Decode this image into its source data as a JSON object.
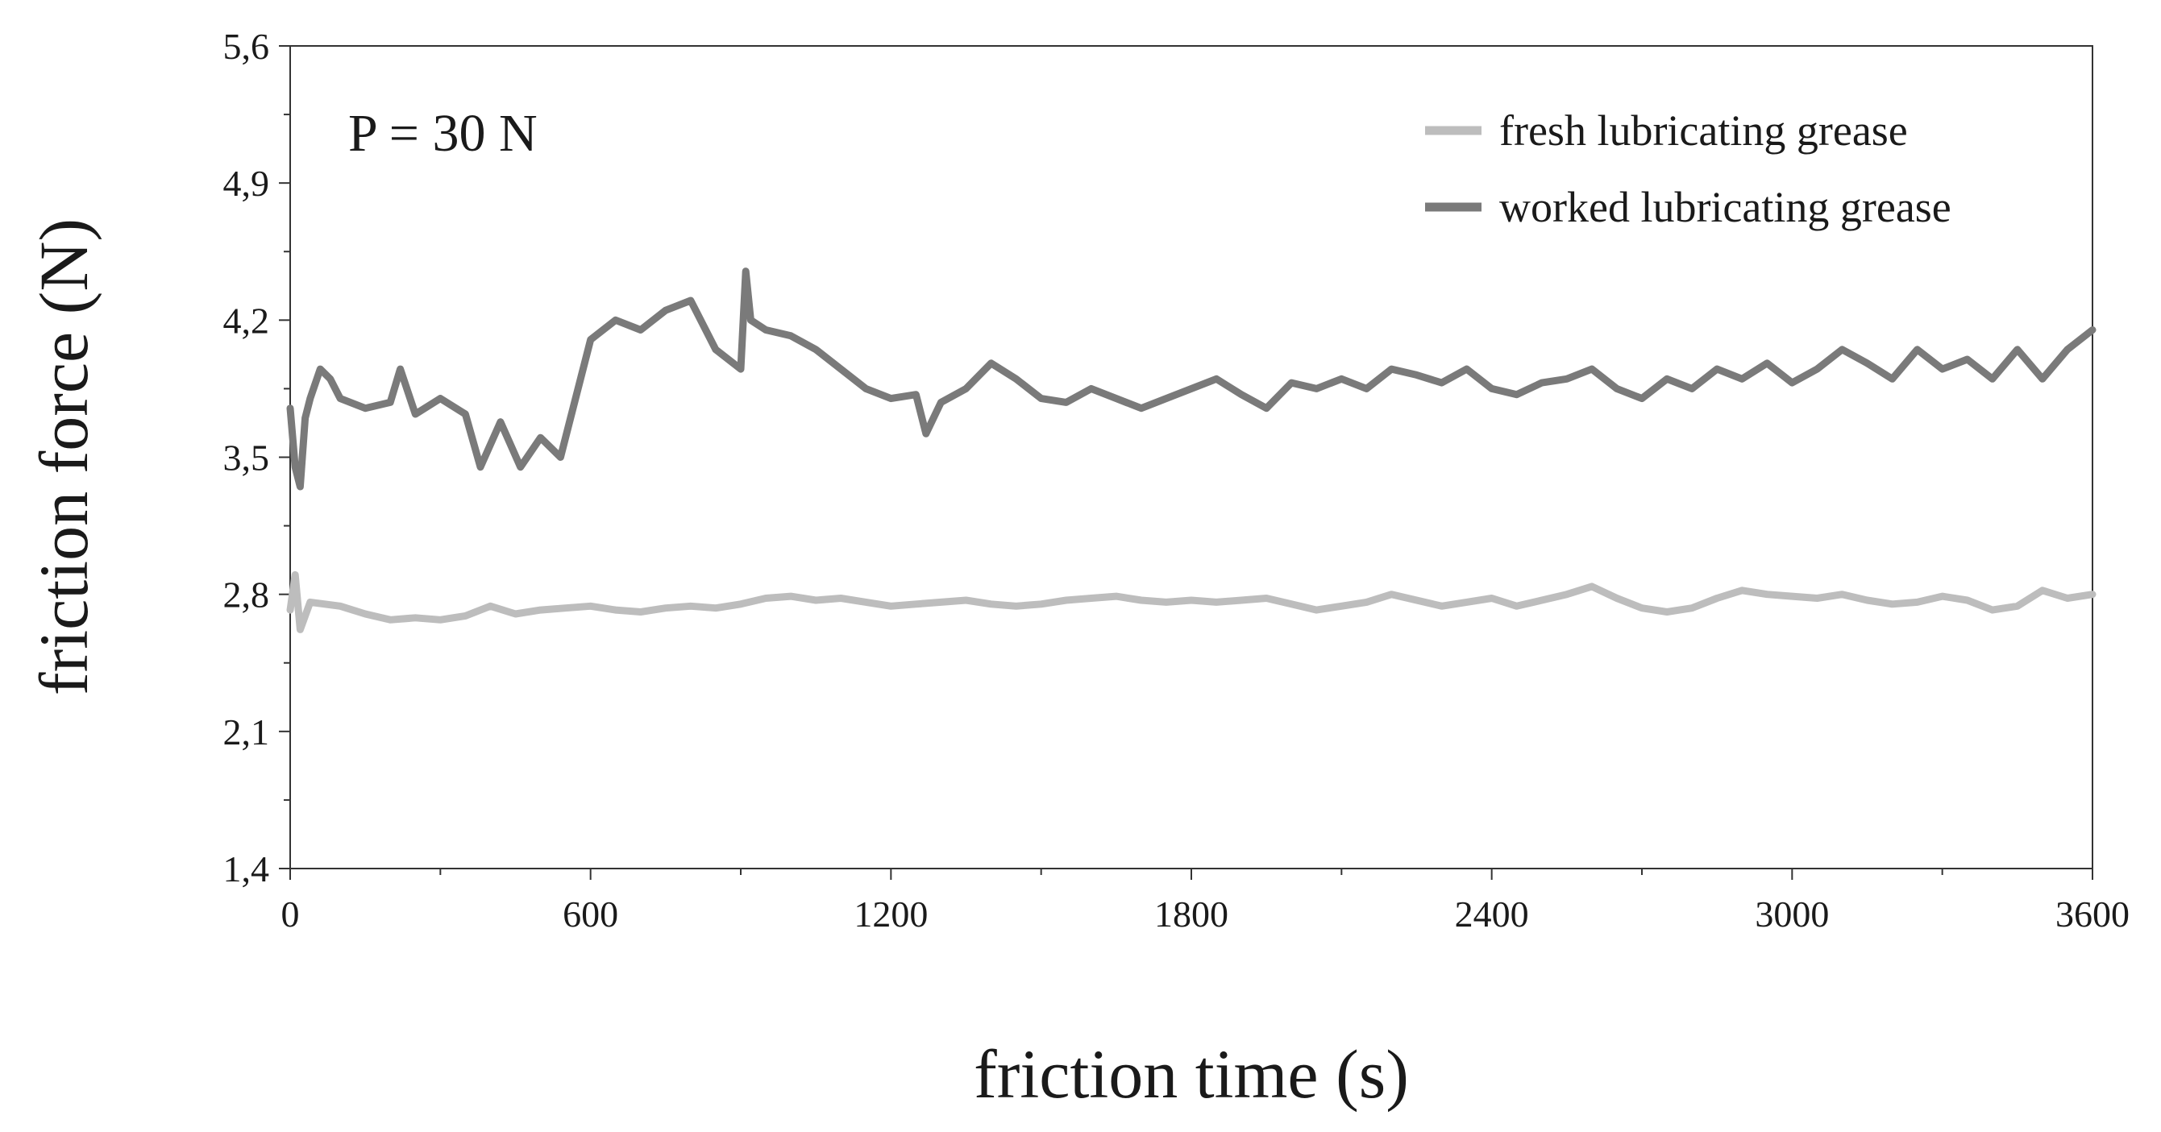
{
  "chart_data": {
    "type": "line",
    "title": "",
    "xlabel": "friction time (s)",
    "ylabel": "friction force (N)",
    "xlim": [
      0,
      3600
    ],
    "ylim": [
      1.4,
      5.6
    ],
    "x_ticks": [
      0,
      600,
      1200,
      1800,
      2400,
      3000,
      3600
    ],
    "x_tick_labels": [
      "0",
      "600",
      "1200",
      "1800",
      "2400",
      "3000",
      "3600"
    ],
    "y_ticks": [
      1.4,
      2.1,
      2.8,
      3.5,
      4.2,
      4.9,
      5.6
    ],
    "y_tick_labels": [
      "1,4",
      "2,1",
      "2,8",
      "3,5",
      "4,2",
      "4,9",
      "5,6"
    ],
    "grid": false,
    "legend_position": "top-right",
    "annotation": "P = 30 N",
    "series": [
      {
        "name": "fresh lubricating grease",
        "color": "#bdbdbd",
        "x": [
          0,
          10,
          20,
          40,
          100,
          150,
          200,
          250,
          300,
          350,
          400,
          450,
          500,
          550,
          600,
          650,
          700,
          750,
          800,
          850,
          900,
          950,
          1000,
          1050,
          1100,
          1150,
          1200,
          1250,
          1300,
          1350,
          1400,
          1450,
          1500,
          1550,
          1600,
          1650,
          1700,
          1750,
          1800,
          1850,
          1900,
          1950,
          2000,
          2050,
          2100,
          2150,
          2200,
          2250,
          2300,
          2350,
          2400,
          2450,
          2500,
          2550,
          2600,
          2650,
          2700,
          2750,
          2800,
          2850,
          2900,
          2950,
          3000,
          3050,
          3100,
          3150,
          3200,
          3250,
          3300,
          3350,
          3400,
          3450,
          3500,
          3550,
          3600
        ],
        "y": [
          2.72,
          2.9,
          2.62,
          2.76,
          2.74,
          2.7,
          2.67,
          2.68,
          2.67,
          2.69,
          2.74,
          2.7,
          2.72,
          2.73,
          2.74,
          2.72,
          2.71,
          2.73,
          2.74,
          2.73,
          2.75,
          2.78,
          2.79,
          2.77,
          2.78,
          2.76,
          2.74,
          2.75,
          2.76,
          2.77,
          2.75,
          2.74,
          2.75,
          2.77,
          2.78,
          2.79,
          2.77,
          2.76,
          2.77,
          2.76,
          2.77,
          2.78,
          2.75,
          2.72,
          2.74,
          2.76,
          2.8,
          2.77,
          2.74,
          2.76,
          2.78,
          2.74,
          2.77,
          2.8,
          2.84,
          2.78,
          2.73,
          2.71,
          2.73,
          2.78,
          2.82,
          2.8,
          2.79,
          2.78,
          2.8,
          2.77,
          2.75,
          2.76,
          2.79,
          2.77,
          2.72,
          2.74,
          2.82,
          2.78,
          2.8
        ]
      },
      {
        "name": "worked lubricating grease",
        "color": "#7a7a7a",
        "x": [
          0,
          10,
          20,
          30,
          40,
          60,
          80,
          100,
          150,
          200,
          220,
          250,
          300,
          350,
          380,
          420,
          460,
          500,
          540,
          560,
          600,
          650,
          700,
          750,
          800,
          850,
          900,
          910,
          920,
          950,
          1000,
          1050,
          1100,
          1150,
          1200,
          1250,
          1270,
          1300,
          1350,
          1400,
          1450,
          1500,
          1550,
          1600,
          1650,
          1700,
          1750,
          1800,
          1850,
          1900,
          1950,
          2000,
          2050,
          2100,
          2150,
          2200,
          2250,
          2300,
          2350,
          2400,
          2450,
          2500,
          2550,
          2600,
          2650,
          2700,
          2750,
          2800,
          2850,
          2900,
          2950,
          3000,
          3050,
          3100,
          3150,
          3200,
          3250,
          3300,
          3350,
          3400,
          3450,
          3500,
          3550,
          3600
        ],
        "y": [
          3.75,
          3.45,
          3.35,
          3.7,
          3.8,
          3.95,
          3.9,
          3.8,
          3.75,
          3.78,
          3.95,
          3.72,
          3.8,
          3.72,
          3.45,
          3.68,
          3.45,
          3.6,
          3.5,
          3.7,
          4.1,
          4.2,
          4.15,
          4.25,
          4.3,
          4.05,
          3.95,
          4.45,
          4.2,
          4.15,
          4.12,
          4.05,
          3.95,
          3.85,
          3.8,
          3.82,
          3.62,
          3.78,
          3.85,
          3.98,
          3.9,
          3.8,
          3.78,
          3.85,
          3.8,
          3.75,
          3.8,
          3.85,
          3.9,
          3.82,
          3.75,
          3.88,
          3.85,
          3.9,
          3.85,
          3.95,
          3.92,
          3.88,
          3.95,
          3.85,
          3.82,
          3.88,
          3.9,
          3.95,
          3.85,
          3.8,
          3.9,
          3.85,
          3.95,
          3.9,
          3.98,
          3.88,
          3.95,
          4.05,
          3.98,
          3.9,
          4.05,
          3.95,
          4.0,
          3.9,
          4.05,
          3.9,
          4.05,
          4.15
        ]
      }
    ]
  }
}
